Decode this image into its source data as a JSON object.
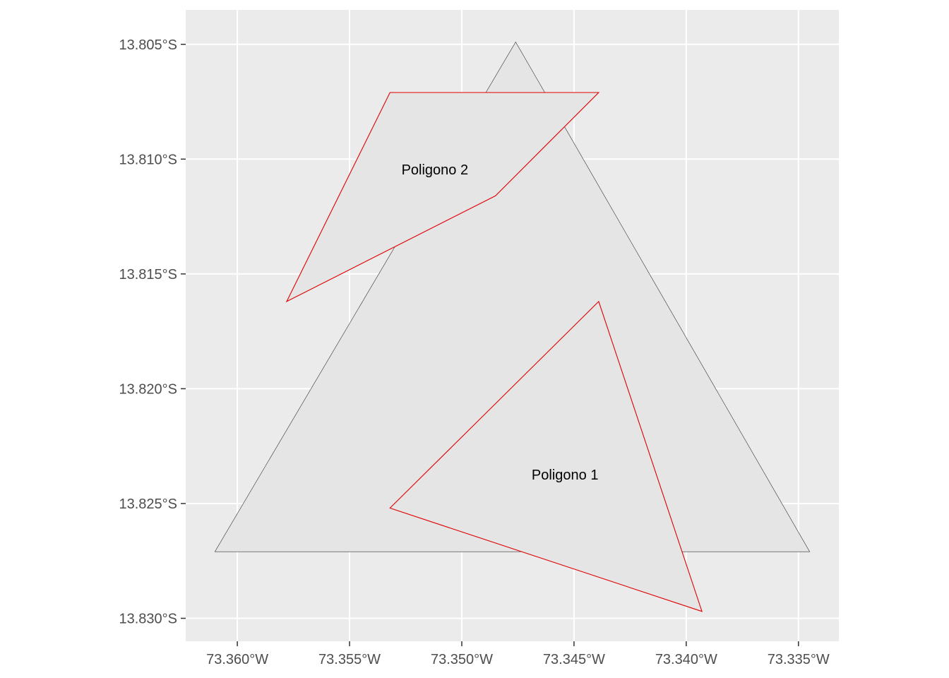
{
  "map": {
    "crs_note": "longitude/latitude (ggplot2 geom_sf style)",
    "panel_background": "#ebebeb",
    "grid_color": "#ffffff",
    "x_ticks": [
      {
        "value": -73.36,
        "label": "73.360°W"
      },
      {
        "value": -73.355,
        "label": "73.355°W"
      },
      {
        "value": -73.35,
        "label": "73.350°W"
      },
      {
        "value": -73.345,
        "label": "73.345°W"
      },
      {
        "value": -73.34,
        "label": "73.340°W"
      },
      {
        "value": -73.335,
        "label": "73.335°W"
      }
    ],
    "y_ticks": [
      {
        "value": -13.805,
        "label": "13.805°S"
      },
      {
        "value": -13.81,
        "label": "13.810°S"
      },
      {
        "value": -13.815,
        "label": "13.815°S"
      },
      {
        "value": -13.82,
        "label": "13.820°S"
      },
      {
        "value": -13.825,
        "label": "13.825°S"
      },
      {
        "value": -13.83,
        "label": "13.830°S"
      }
    ],
    "x_range": [
      -73.3623,
      -73.3332
    ],
    "y_range": [
      -13.831,
      -13.8035
    ],
    "polygons": [
      {
        "role": "background-triangle",
        "fill": "#e5e5e5",
        "stroke": "#333333",
        "coords": [
          [
            -73.361,
            -13.8271
          ],
          [
            -73.3476,
            -13.8049
          ],
          [
            -73.3345,
            -13.8271
          ]
        ]
      },
      {
        "role": "poligono-1",
        "fill": "#e5e5e5",
        "stroke": "#e00000",
        "coords": [
          [
            -73.3532,
            -13.8252
          ],
          [
            -73.3439,
            -13.8162
          ],
          [
            -73.3393,
            -13.8297
          ]
        ]
      },
      {
        "role": "poligono-2",
        "fill": "#e5e5e5",
        "stroke": "#e00000",
        "coords": [
          [
            -73.3578,
            -13.8162
          ],
          [
            -73.3532,
            -13.8071
          ],
          [
            -73.3439,
            -13.8071
          ],
          [
            -73.3485,
            -13.8116
          ]
        ]
      }
    ],
    "labels": [
      {
        "text": "Poligono 2",
        "lon": -73.3512,
        "lat": -13.8105
      },
      {
        "text": "Poligono 1",
        "lon": -73.3454,
        "lat": -13.8238
      }
    ]
  }
}
